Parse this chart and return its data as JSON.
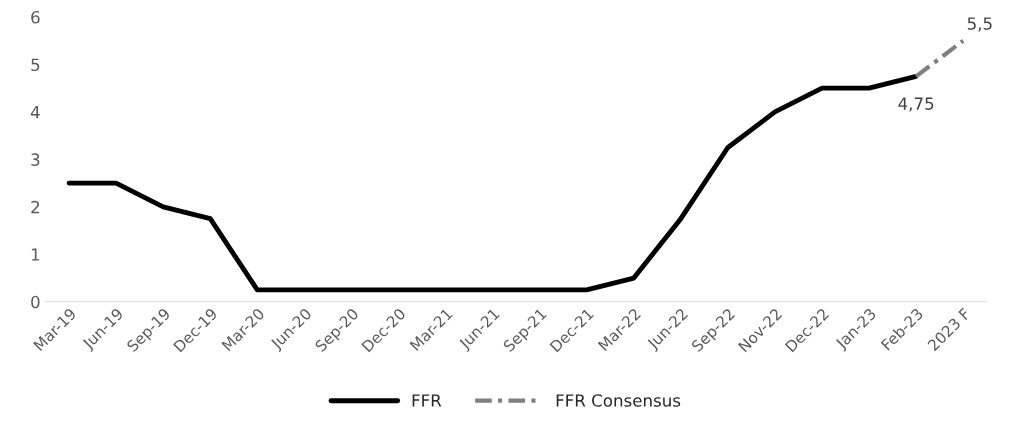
{
  "chart_data": {
    "type": "line",
    "categories": [
      "Mar-19",
      "Jun-19",
      "Sep-19",
      "Dec-19",
      "Mar-20",
      "Jun-20",
      "Sep-20",
      "Dec-20",
      "Mar-21",
      "Jun-21",
      "Sep-21",
      "Dec-21",
      "Mar-22",
      "Jun-22",
      "Sep-22",
      "Nov-22",
      "Dec-22",
      "Jan-23",
      "Feb-23",
      "2023 F"
    ],
    "series": [
      {
        "name": "FFR",
        "color": "#000000",
        "line_style": "solid",
        "values": [
          2.5,
          2.5,
          2,
          1.75,
          0.25,
          0.25,
          0.25,
          0.25,
          0.25,
          0.25,
          0.25,
          0.25,
          0.5,
          1.75,
          3.25,
          4,
          4.5,
          4.5,
          4.75,
          null
        ]
      },
      {
        "name": "FFR Consensus",
        "color": "#808080",
        "line_style": "dashed",
        "values": [
          null,
          null,
          null,
          null,
          null,
          null,
          null,
          null,
          null,
          null,
          null,
          null,
          null,
          null,
          null,
          null,
          null,
          null,
          4.75,
          5.5
        ],
        "value_labels": [
          null,
          null,
          null,
          null,
          null,
          null,
          null,
          null,
          null,
          null,
          null,
          null,
          null,
          null,
          null,
          null,
          null,
          null,
          "4,75",
          "5,5"
        ]
      }
    ],
    "ylim": [
      0,
      6
    ],
    "yticks": [
      0,
      1,
      2,
      3,
      4,
      5,
      6
    ],
    "grid": false,
    "legend": "bottom"
  }
}
